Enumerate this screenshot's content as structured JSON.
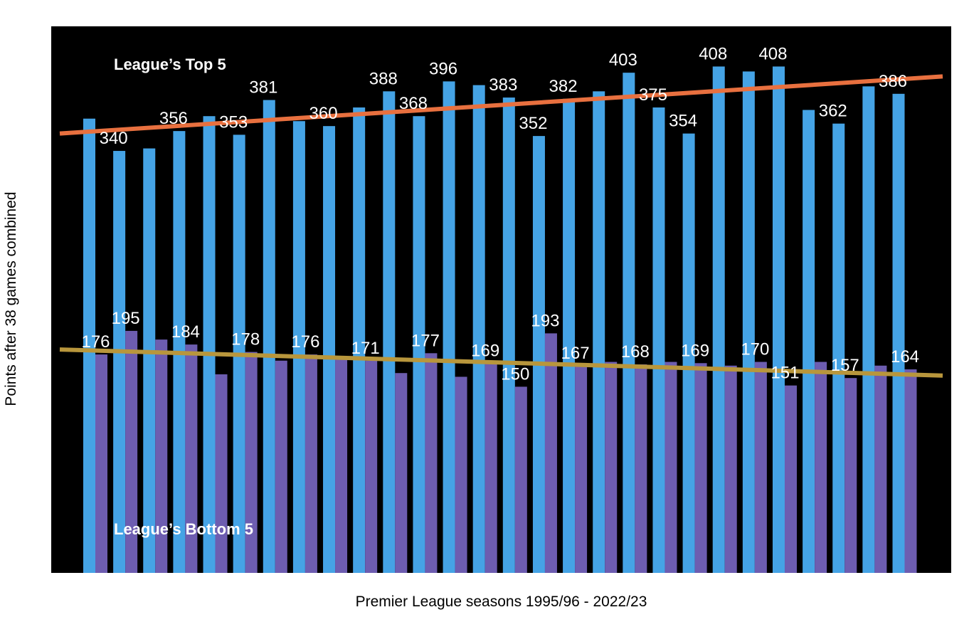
{
  "chart_data": {
    "type": "bar",
    "xlabel": "Premier League seasons 1995/96 - 2022/23",
    "ylabel": "Points after 38 games combined",
    "annotations": [
      "League’s Top 5",
      "League’s Bottom 5"
    ],
    "grid": false,
    "background": "#000000",
    "series": [
      {
        "name": "League’s Top 5",
        "color": "#45a3e5",
        "values": [
          366,
          340,
          342,
          356,
          368,
          353,
          381,
          364,
          360,
          375,
          388,
          368,
          396,
          393,
          383,
          352,
          382,
          388,
          403,
          375,
          354,
          408,
          404,
          408,
          373,
          362,
          392,
          386
        ],
        "labeled_indices": [
          1,
          3,
          5,
          6,
          8,
          10,
          11,
          12,
          14,
          15,
          16,
          18,
          19,
          20,
          21,
          23,
          25,
          27
        ]
      },
      {
        "name": "League’s Bottom 5",
        "color": "#6d5db0",
        "values": [
          176,
          195,
          188,
          184,
          160,
          178,
          171,
          176,
          174,
          171,
          161,
          177,
          158,
          169,
          150,
          193,
          167,
          170,
          168,
          170,
          169,
          167,
          170,
          151,
          170,
          157,
          167,
          164
        ],
        "labeled_indices": [
          0,
          1,
          3,
          5,
          7,
          9,
          11,
          13,
          14,
          15,
          16,
          18,
          20,
          22,
          23,
          25,
          27
        ]
      }
    ],
    "trendlines": [
      {
        "series": "League’s Top 5",
        "color": "#e8703f",
        "start": 354,
        "end": 400
      },
      {
        "series": "League’s Bottom 5",
        "color": "#b8963c",
        "start": 180,
        "end": 159
      }
    ],
    "ylim": [
      0,
      440
    ]
  }
}
